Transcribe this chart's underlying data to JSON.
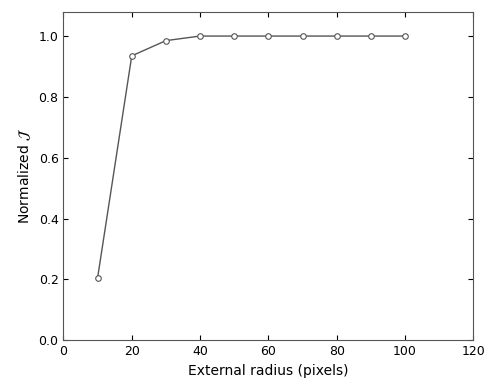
{
  "x": [
    10,
    20,
    30,
    40,
    50,
    60,
    70,
    80,
    90,
    100
  ],
  "y": [
    0.205,
    0.935,
    0.985,
    1.0,
    1.0,
    1.0,
    1.0,
    1.0,
    1.0,
    1.0
  ],
  "line_color": "#555555",
  "marker": "o",
  "marker_facecolor": "white",
  "marker_edgecolor": "#555555",
  "marker_size": 4,
  "linewidth": 1.0,
  "xlabel": "External radius (pixels)",
  "ylabel": "Normalized $\\mathcal{J}$",
  "xlim": [
    0,
    120
  ],
  "ylim": [
    0,
    1.08
  ],
  "xticks": [
    0,
    20,
    40,
    60,
    80,
    100,
    120
  ],
  "yticks": [
    0,
    0.2,
    0.4,
    0.6,
    0.8,
    1.0
  ],
  "background_color": "#ffffff",
  "spine_color": "#555555",
  "label_fontsize": 10,
  "tick_fontsize": 9
}
